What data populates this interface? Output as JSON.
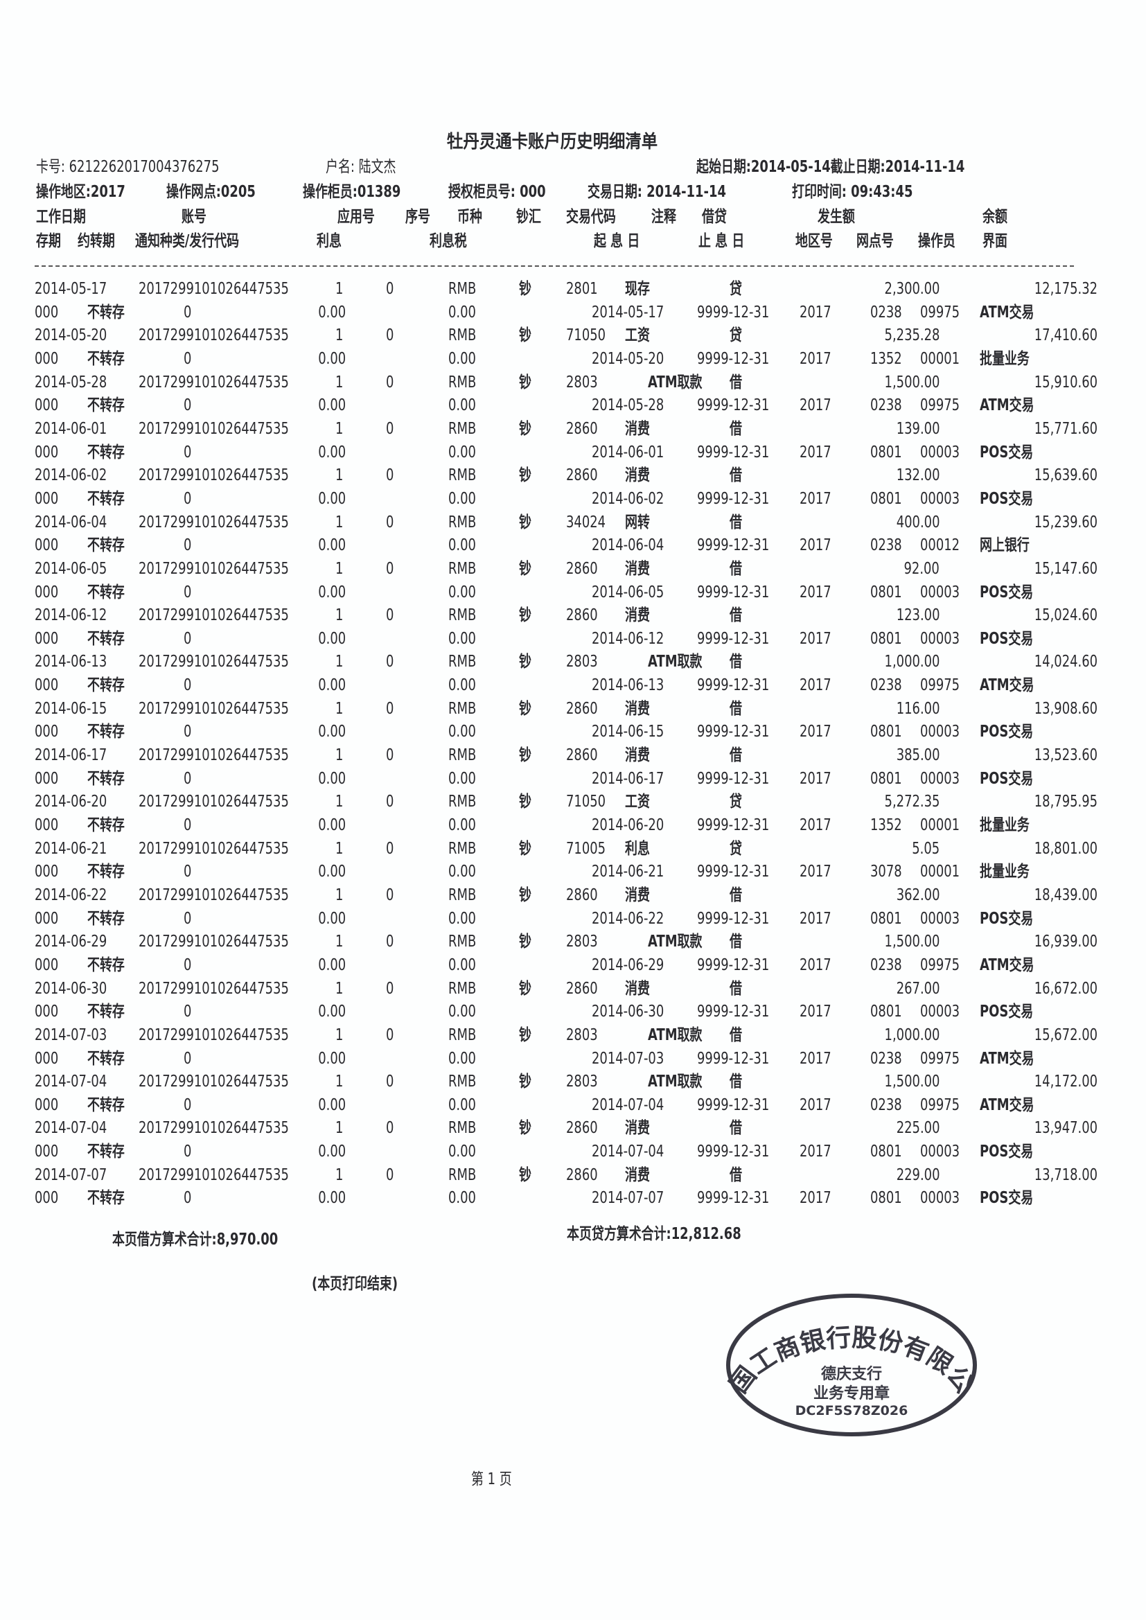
{
  "title": "牡丹灵通卡账户历史明细清单",
  "header": {
    "card_no": "卡号: 6212262017004376275",
    "holder": "户名: 陆文杰",
    "date_range": "起始日期:2014-05-14截止日期:2014-11-14",
    "region": "操作地区:2017",
    "branch": "操作网点:0205",
    "teller": "操作柜员:01389",
    "auth_teller": "授权柜员号: 000",
    "trade_date": "交易日期: 2014-11-14",
    "print_time": "打印时间: 09:43:45"
  },
  "columns_line1": [
    "工作日期",
    "账号",
    "应用号",
    "序号",
    "币种",
    "钞汇",
    "交易代码",
    "注释",
    "借贷",
    "发生额",
    "余额"
  ],
  "columns_line2": [
    "存期",
    "约转期",
    "通知种类/发行代码",
    "利息",
    "利息税",
    "起 息 日",
    "止 息 日",
    "地区号",
    "网点号",
    "操作员",
    "界面"
  ],
  "account": "2017299101026447535",
  "rows": [
    {
      "date": "2014-05-17",
      "app": "1",
      "seq": "0",
      "cur": "RMB",
      "cash": "钞",
      "code": "2801",
      "note": "现存",
      "dc": "贷",
      "amount": "2,300.00",
      "balance": "12,175.32",
      "term": "000",
      "transfer": "不转存",
      "notice": "0",
      "interest": "0.00",
      "tax": "0.00",
      "start": "2014-05-17",
      "end": "9999-12-31",
      "area": "2017",
      "region": "0238",
      "branch": "09975",
      "iface": "ATM交易"
    },
    {
      "date": "2014-05-20",
      "app": "1",
      "seq": "0",
      "cur": "RMB",
      "cash": "钞",
      "code": "71050",
      "note": "工资",
      "dc": "贷",
      "amount": "5,235.28",
      "balance": "17,410.60",
      "term": "000",
      "transfer": "不转存",
      "notice": "0",
      "interest": "0.00",
      "tax": "0.00",
      "start": "2014-05-20",
      "end": "9999-12-31",
      "area": "2017",
      "region": "1352",
      "branch": "00001",
      "iface": "批量业务"
    },
    {
      "date": "2014-05-28",
      "app": "1",
      "seq": "0",
      "cur": "RMB",
      "cash": "钞",
      "code": "2803",
      "note": "ATM取款",
      "dc": "借",
      "amount": "1,500.00",
      "balance": "15,910.60",
      "term": "000",
      "transfer": "不转存",
      "notice": "0",
      "interest": "0.00",
      "tax": "0.00",
      "start": "2014-05-28",
      "end": "9999-12-31",
      "area": "2017",
      "region": "0238",
      "branch": "09975",
      "iface": "ATM交易"
    },
    {
      "date": "2014-06-01",
      "app": "1",
      "seq": "0",
      "cur": "RMB",
      "cash": "钞",
      "code": "2860",
      "note": "消费",
      "dc": "借",
      "amount": "139.00",
      "balance": "15,771.60",
      "term": "000",
      "transfer": "不转存",
      "notice": "0",
      "interest": "0.00",
      "tax": "0.00",
      "start": "2014-06-01",
      "end": "9999-12-31",
      "area": "2017",
      "region": "0801",
      "branch": "00003",
      "iface": "POS交易"
    },
    {
      "date": "2014-06-02",
      "app": "1",
      "seq": "0",
      "cur": "RMB",
      "cash": "钞",
      "code": "2860",
      "note": "消费",
      "dc": "借",
      "amount": "132.00",
      "balance": "15,639.60",
      "term": "000",
      "transfer": "不转存",
      "notice": "0",
      "interest": "0.00",
      "tax": "0.00",
      "start": "2014-06-02",
      "end": "9999-12-31",
      "area": "2017",
      "region": "0801",
      "branch": "00003",
      "iface": "POS交易"
    },
    {
      "date": "2014-06-04",
      "app": "1",
      "seq": "0",
      "cur": "RMB",
      "cash": "钞",
      "code": "34024",
      "note": "网转",
      "dc": "借",
      "amount": "400.00",
      "balance": "15,239.60",
      "term": "000",
      "transfer": "不转存",
      "notice": "0",
      "interest": "0.00",
      "tax": "0.00",
      "start": "2014-06-04",
      "end": "9999-12-31",
      "area": "2017",
      "region": "0238",
      "branch": "00012",
      "iface": "网上银行"
    },
    {
      "date": "2014-06-05",
      "app": "1",
      "seq": "0",
      "cur": "RMB",
      "cash": "钞",
      "code": "2860",
      "note": "消费",
      "dc": "借",
      "amount": "92.00",
      "balance": "15,147.60",
      "term": "000",
      "transfer": "不转存",
      "notice": "0",
      "interest": "0.00",
      "tax": "0.00",
      "start": "2014-06-05",
      "end": "9999-12-31",
      "area": "2017",
      "region": "0801",
      "branch": "00003",
      "iface": "POS交易"
    },
    {
      "date": "2014-06-12",
      "app": "1",
      "seq": "0",
      "cur": "RMB",
      "cash": "钞",
      "code": "2860",
      "note": "消费",
      "dc": "借",
      "amount": "123.00",
      "balance": "15,024.60",
      "term": "000",
      "transfer": "不转存",
      "notice": "0",
      "interest": "0.00",
      "tax": "0.00",
      "start": "2014-06-12",
      "end": "9999-12-31",
      "area": "2017",
      "region": "0801",
      "branch": "00003",
      "iface": "POS交易"
    },
    {
      "date": "2014-06-13",
      "app": "1",
      "seq": "0",
      "cur": "RMB",
      "cash": "钞",
      "code": "2803",
      "note": "ATM取款",
      "dc": "借",
      "amount": "1,000.00",
      "balance": "14,024.60",
      "term": "000",
      "transfer": "不转存",
      "notice": "0",
      "interest": "0.00",
      "tax": "0.00",
      "start": "2014-06-13",
      "end": "9999-12-31",
      "area": "2017",
      "region": "0238",
      "branch": "09975",
      "iface": "ATM交易"
    },
    {
      "date": "2014-06-15",
      "app": "1",
      "seq": "0",
      "cur": "RMB",
      "cash": "钞",
      "code": "2860",
      "note": "消费",
      "dc": "借",
      "amount": "116.00",
      "balance": "13,908.60",
      "term": "000",
      "transfer": "不转存",
      "notice": "0",
      "interest": "0.00",
      "tax": "0.00",
      "start": "2014-06-15",
      "end": "9999-12-31",
      "area": "2017",
      "region": "0801",
      "branch": "00003",
      "iface": "POS交易"
    },
    {
      "date": "2014-06-17",
      "app": "1",
      "seq": "0",
      "cur": "RMB",
      "cash": "钞",
      "code": "2860",
      "note": "消费",
      "dc": "借",
      "amount": "385.00",
      "balance": "13,523.60",
      "term": "000",
      "transfer": "不转存",
      "notice": "0",
      "interest": "0.00",
      "tax": "0.00",
      "start": "2014-06-17",
      "end": "9999-12-31",
      "area": "2017",
      "region": "0801",
      "branch": "00003",
      "iface": "POS交易"
    },
    {
      "date": "2014-06-20",
      "app": "1",
      "seq": "0",
      "cur": "RMB",
      "cash": "钞",
      "code": "71050",
      "note": "工资",
      "dc": "贷",
      "amount": "5,272.35",
      "balance": "18,795.95",
      "term": "000",
      "transfer": "不转存",
      "notice": "0",
      "interest": "0.00",
      "tax": "0.00",
      "start": "2014-06-20",
      "end": "9999-12-31",
      "area": "2017",
      "region": "1352",
      "branch": "00001",
      "iface": "批量业务"
    },
    {
      "date": "2014-06-21",
      "app": "1",
      "seq": "0",
      "cur": "RMB",
      "cash": "钞",
      "code": "71005",
      "note": "利息",
      "dc": "贷",
      "amount": "5.05",
      "balance": "18,801.00",
      "term": "000",
      "transfer": "不转存",
      "notice": "0",
      "interest": "0.00",
      "tax": "0.00",
      "start": "2014-06-21",
      "end": "9999-12-31",
      "area": "2017",
      "region": "3078",
      "branch": "00001",
      "iface": "批量业务"
    },
    {
      "date": "2014-06-22",
      "app": "1",
      "seq": "0",
      "cur": "RMB",
      "cash": "钞",
      "code": "2860",
      "note": "消费",
      "dc": "借",
      "amount": "362.00",
      "balance": "18,439.00",
      "term": "000",
      "transfer": "不转存",
      "notice": "0",
      "interest": "0.00",
      "tax": "0.00",
      "start": "2014-06-22",
      "end": "9999-12-31",
      "area": "2017",
      "region": "0801",
      "branch": "00003",
      "iface": "POS交易"
    },
    {
      "date": "2014-06-29",
      "app": "1",
      "seq": "0",
      "cur": "RMB",
      "cash": "钞",
      "code": "2803",
      "note": "ATM取款",
      "dc": "借",
      "amount": "1,500.00",
      "balance": "16,939.00",
      "term": "000",
      "transfer": "不转存",
      "notice": "0",
      "interest": "0.00",
      "tax": "0.00",
      "start": "2014-06-29",
      "end": "9999-12-31",
      "area": "2017",
      "region": "0238",
      "branch": "09975",
      "iface": "ATM交易"
    },
    {
      "date": "2014-06-30",
      "app": "1",
      "seq": "0",
      "cur": "RMB",
      "cash": "钞",
      "code": "2860",
      "note": "消费",
      "dc": "借",
      "amount": "267.00",
      "balance": "16,672.00",
      "term": "000",
      "transfer": "不转存",
      "notice": "0",
      "interest": "0.00",
      "tax": "0.00",
      "start": "2014-06-30",
      "end": "9999-12-31",
      "area": "2017",
      "region": "0801",
      "branch": "00003",
      "iface": "POS交易"
    },
    {
      "date": "2014-07-03",
      "app": "1",
      "seq": "0",
      "cur": "RMB",
      "cash": "钞",
      "code": "2803",
      "note": "ATM取款",
      "dc": "借",
      "amount": "1,000.00",
      "balance": "15,672.00",
      "term": "000",
      "transfer": "不转存",
      "notice": "0",
      "interest": "0.00",
      "tax": "0.00",
      "start": "2014-07-03",
      "end": "9999-12-31",
      "area": "2017",
      "region": "0238",
      "branch": "09975",
      "iface": "ATM交易"
    },
    {
      "date": "2014-07-04",
      "app": "1",
      "seq": "0",
      "cur": "RMB",
      "cash": "钞",
      "code": "2803",
      "note": "ATM取款",
      "dc": "借",
      "amount": "1,500.00",
      "balance": "14,172.00",
      "term": "000",
      "transfer": "不转存",
      "notice": "0",
      "interest": "0.00",
      "tax": "0.00",
      "start": "2014-07-04",
      "end": "9999-12-31",
      "area": "2017",
      "region": "0238",
      "branch": "09975",
      "iface": "ATM交易"
    },
    {
      "date": "2014-07-04",
      "app": "1",
      "seq": "0",
      "cur": "RMB",
      "cash": "钞",
      "code": "2860",
      "note": "消费",
      "dc": "借",
      "amount": "225.00",
      "balance": "13,947.00",
      "term": "000",
      "transfer": "不转存",
      "notice": "0",
      "interest": "0.00",
      "tax": "0.00",
      "start": "2014-07-04",
      "end": "9999-12-31",
      "area": "2017",
      "region": "0801",
      "branch": "00003",
      "iface": "POS交易"
    },
    {
      "date": "2014-07-07",
      "app": "1",
      "seq": "0",
      "cur": "RMB",
      "cash": "钞",
      "code": "2860",
      "note": "消费",
      "dc": "借",
      "amount": "229.00",
      "balance": "13,718.00",
      "term": "000",
      "transfer": "不转存",
      "notice": "0",
      "interest": "0.00",
      "tax": "0.00",
      "start": "2014-07-07",
      "end": "9999-12-31",
      "area": "2017",
      "region": "0801",
      "branch": "00003",
      "iface": "POS交易"
    }
  ],
  "totals": {
    "debit": "本页借方算术合计:8,970.00",
    "credit": "本页贷方算术合计:12,812.68"
  },
  "end_note": "(本页打印结束)",
  "stamp": {
    "ring_text": "中国工商银行股份有限公司",
    "branch": "德庆支行",
    "purpose": "业务专用章",
    "code": "DC2F5S78Z026"
  },
  "page_number": "第 1 页",
  "colors": {
    "ink": "#2a2a2e",
    "stamp": "#3a3a44",
    "paper": "#fdfefe"
  }
}
